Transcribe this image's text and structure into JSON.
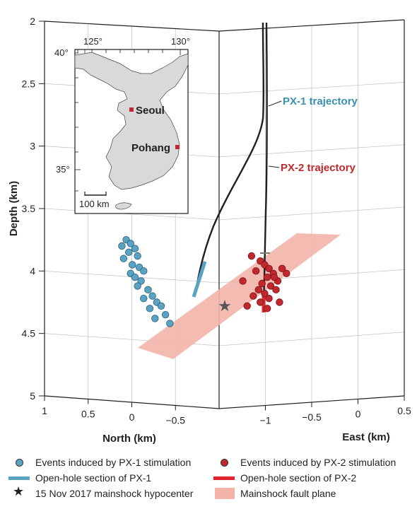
{
  "chart_data": {
    "type": "scatter",
    "title": "",
    "axes": {
      "depth": {
        "label": "Depth (km)",
        "ticks": [
          "2",
          "2.5",
          "3",
          "3.5",
          "4",
          "4.5",
          "5"
        ],
        "range": [
          2,
          5
        ]
      },
      "north": {
        "label": "North (km)",
        "ticks": [
          "1",
          "0.5",
          "0",
          "−0.5"
        ],
        "range": [
          1,
          -1
        ]
      },
      "east": {
        "label": "East (km)",
        "ticks": [
          "−1",
          "−0.5",
          "0",
          "0.5"
        ],
        "range": [
          -1.5,
          0.5
        ]
      }
    },
    "series": [
      {
        "name": "Events induced by PX-1 stimulation",
        "color": "#5aa3c3",
        "points_screen_depth": [
          {
            "n": 0.55,
            "d": 3.75
          },
          {
            "n": 0.5,
            "d": 3.78
          },
          {
            "n": 0.6,
            "d": 3.8
          },
          {
            "n": 0.45,
            "d": 3.82
          },
          {
            "n": 0.52,
            "d": 3.85
          },
          {
            "n": 0.42,
            "d": 3.88
          },
          {
            "n": 0.58,
            "d": 3.9
          },
          {
            "n": 0.48,
            "d": 3.95
          },
          {
            "n": 0.4,
            "d": 3.97
          },
          {
            "n": 0.35,
            "d": 4.0
          },
          {
            "n": 0.5,
            "d": 4.02
          },
          {
            "n": 0.45,
            "d": 4.05
          },
          {
            "n": 0.38,
            "d": 4.08
          },
          {
            "n": 0.42,
            "d": 4.12
          },
          {
            "n": 0.3,
            "d": 4.15
          },
          {
            "n": 0.25,
            "d": 4.2
          },
          {
            "n": 0.35,
            "d": 4.22
          },
          {
            "n": 0.2,
            "d": 4.25
          },
          {
            "n": 0.15,
            "d": 4.28
          },
          {
            "n": 0.28,
            "d": 4.3
          },
          {
            "n": 0.1,
            "d": 4.35
          },
          {
            "n": 0.22,
            "d": 4.38
          },
          {
            "n": 0.05,
            "d": 4.42
          }
        ]
      },
      {
        "name": "Events induced by PX-2 stimulation",
        "color": "#c0282d",
        "points_screen_depth": [
          {
            "n": -0.4,
            "d": 3.88
          },
          {
            "n": -0.5,
            "d": 3.92
          },
          {
            "n": -0.55,
            "d": 3.95
          },
          {
            "n": -0.6,
            "d": 3.98
          },
          {
            "n": -0.45,
            "d": 4.0
          },
          {
            "n": -0.65,
            "d": 4.02
          },
          {
            "n": -0.58,
            "d": 4.05
          },
          {
            "n": -0.7,
            "d": 4.08
          },
          {
            "n": -0.52,
            "d": 4.1
          },
          {
            "n": -0.62,
            "d": 4.12
          },
          {
            "n": -0.48,
            "d": 4.15
          },
          {
            "n": -0.68,
            "d": 4.15
          },
          {
            "n": -0.55,
            "d": 4.18
          },
          {
            "n": -0.42,
            "d": 4.2
          },
          {
            "n": -0.6,
            "d": 4.22
          },
          {
            "n": -0.72,
            "d": 4.25
          },
          {
            "n": -0.5,
            "d": 4.25
          },
          {
            "n": -0.35,
            "d": 4.28
          },
          {
            "n": -0.58,
            "d": 4.3
          },
          {
            "n": -0.66,
            "d": 4.05
          },
          {
            "n": -0.75,
            "d": 3.98
          },
          {
            "n": -0.8,
            "d": 4.02
          },
          {
            "n": -0.3,
            "d": 4.08
          }
        ]
      }
    ],
    "annotations": {
      "px1": {
        "text": "PX-1 trajectory",
        "color": "#3b8fb0"
      },
      "px2": {
        "text": "PX-2 trajectory",
        "color": "#c0282d"
      }
    },
    "inset_map": {
      "lon_ticks": [
        "125°",
        "130°"
      ],
      "lat_ticks": [
        "40°",
        "35°"
      ],
      "cities": [
        {
          "name": "Seoul",
          "color": "#c0282d"
        },
        {
          "name": "Pohang",
          "color": "#c0282d"
        }
      ],
      "scale_bar": "100 km",
      "land_color": "#d9d9d9"
    },
    "colors": {
      "px1": "#5aa3c3",
      "px1_open_hole": "#5aa3c3",
      "px2": "#c0282d",
      "px2_open_hole": "#e0262b",
      "fault_plane": "#f2b4a8",
      "trajectory": "#231f20",
      "grid": "#c8c8c8"
    }
  },
  "legend": [
    {
      "label": "Events induced by PX-1 stimulation",
      "symbol": "dot",
      "color": "#5aa3c3"
    },
    {
      "label": "Events induced by PX-2 stimulation",
      "symbol": "dot",
      "color": "#c0282d"
    },
    {
      "label": "Open-hole section of PX-1",
      "symbol": "line",
      "color": "#5aa3c3"
    },
    {
      "label": "Open-hole section of PX-2",
      "symbol": "line",
      "color": "#e0262b"
    },
    {
      "label": "15 Nov 2017 mainshock hypocenter",
      "symbol": "star",
      "color": "#231f20"
    },
    {
      "label": "Mainshock fault plane",
      "symbol": "rect",
      "color": "#f2b4a8"
    }
  ]
}
